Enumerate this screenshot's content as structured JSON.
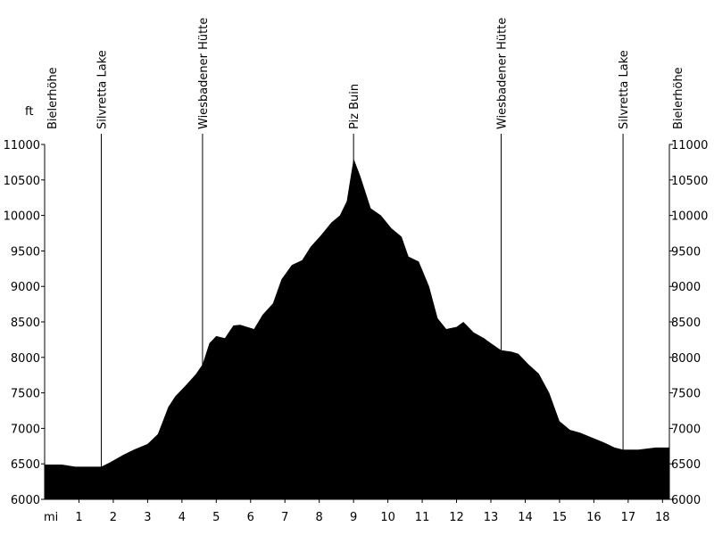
{
  "chart_data": {
    "type": "area",
    "y_unit_label": "ft",
    "x_unit_label": "mi",
    "xlim": [
      0,
      18.2
    ],
    "ylim": [
      6000,
      11000
    ],
    "x_ticks": [
      1,
      2,
      3,
      4,
      5,
      6,
      7,
      8,
      9,
      10,
      11,
      12,
      13,
      14,
      15,
      16,
      17,
      18
    ],
    "y_ticks": [
      6000,
      6500,
      7000,
      7500,
      8000,
      8500,
      9000,
      9500,
      10000,
      10500,
      11000
    ],
    "waypoints": [
      {
        "name": "Bielerhöhe",
        "x": 0.0
      },
      {
        "name": "Silvretta Lake",
        "x": 1.65
      },
      {
        "name": "Wiesbadener Hütte",
        "x": 4.6
      },
      {
        "name": "Piz Buin",
        "x": 9.0
      },
      {
        "name": "Wiesbadener Hütte",
        "x": 13.3
      },
      {
        "name": "Silvretta Lake",
        "x": 16.85
      },
      {
        "name": "Bielerhöhe",
        "x": 18.2
      }
    ],
    "profile": [
      [
        0.0,
        6490
      ],
      [
        0.5,
        6490
      ],
      [
        0.9,
        6460
      ],
      [
        1.65,
        6460
      ],
      [
        1.9,
        6520
      ],
      [
        2.3,
        6630
      ],
      [
        2.6,
        6700
      ],
      [
        3.0,
        6780
      ],
      [
        3.3,
        6920
      ],
      [
        3.6,
        7300
      ],
      [
        3.8,
        7450
      ],
      [
        4.1,
        7600
      ],
      [
        4.4,
        7760
      ],
      [
        4.6,
        7900
      ],
      [
        4.8,
        8200
      ],
      [
        5.0,
        8300
      ],
      [
        5.25,
        8270
      ],
      [
        5.5,
        8450
      ],
      [
        5.7,
        8460
      ],
      [
        6.1,
        8400
      ],
      [
        6.35,
        8600
      ],
      [
        6.65,
        8760
      ],
      [
        6.9,
        9100
      ],
      [
        7.2,
        9300
      ],
      [
        7.5,
        9370
      ],
      [
        7.75,
        9560
      ],
      [
        8.05,
        9720
      ],
      [
        8.35,
        9900
      ],
      [
        8.6,
        10000
      ],
      [
        8.8,
        10200
      ],
      [
        9.0,
        10800
      ],
      [
        9.2,
        10550
      ],
      [
        9.5,
        10100
      ],
      [
        9.8,
        10000
      ],
      [
        10.1,
        9820
      ],
      [
        10.4,
        9700
      ],
      [
        10.6,
        9420
      ],
      [
        10.9,
        9350
      ],
      [
        11.2,
        9000
      ],
      [
        11.45,
        8550
      ],
      [
        11.7,
        8400
      ],
      [
        12.0,
        8430
      ],
      [
        12.2,
        8500
      ],
      [
        12.5,
        8350
      ],
      [
        12.8,
        8270
      ],
      [
        13.0,
        8200
      ],
      [
        13.3,
        8100
      ],
      [
        13.6,
        8080
      ],
      [
        13.8,
        8050
      ],
      [
        14.1,
        7900
      ],
      [
        14.4,
        7770
      ],
      [
        14.7,
        7500
      ],
      [
        15.0,
        7100
      ],
      [
        15.3,
        6980
      ],
      [
        15.6,
        6940
      ],
      [
        15.9,
        6880
      ],
      [
        16.3,
        6800
      ],
      [
        16.6,
        6730
      ],
      [
        16.85,
        6700
      ],
      [
        17.3,
        6700
      ],
      [
        17.8,
        6730
      ],
      [
        18.2,
        6730
      ]
    ]
  }
}
